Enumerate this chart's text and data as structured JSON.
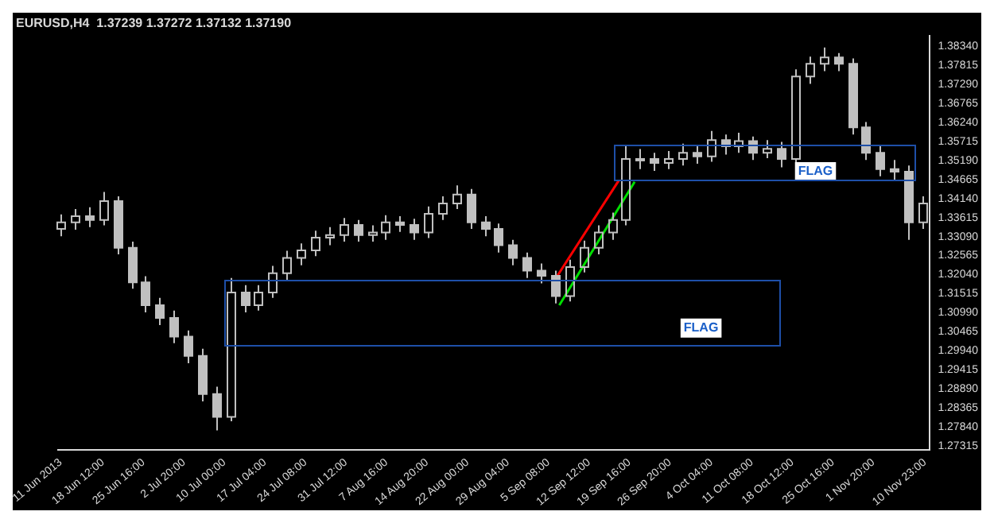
{
  "chart_data": {
    "type": "candlestick",
    "title": "EURUSD,H4  1.37239 1.37272 1.37132 1.37190",
    "color": "#c0c0c0",
    "x": [
      "2013-06-11T00:00",
      "2013-06-13T12:00",
      "2013-06-16T00:00",
      "2013-06-18T12:00",
      "2013-06-21T00:00",
      "2013-06-23T12:00",
      "2013-06-26T00:00",
      "2013-06-28T12:00",
      "2013-07-01T00:00",
      "2013-07-03T12:00",
      "2013-07-06T00:00",
      "2013-07-08T12:00",
      "2013-07-11T00:00",
      "2013-07-13T12:00",
      "2013-07-16T00:00",
      "2013-07-18T12:00",
      "2013-07-21T00:00",
      "2013-07-23T12:00",
      "2013-07-26T00:00",
      "2013-07-28T12:00",
      "2013-07-31T00:00",
      "2013-08-02T12:00",
      "2013-08-05T00:00",
      "2013-08-07T12:00",
      "2013-08-10T00:00",
      "2013-08-12T12:00",
      "2013-08-15T00:00",
      "2013-08-17T12:00",
      "2013-08-20T00:00",
      "2013-08-22T12:00",
      "2013-08-25T00:00",
      "2013-08-27T12:00",
      "2013-08-30T00:00",
      "2013-09-01T12:00",
      "2013-09-04T00:00",
      "2013-09-06T12:00",
      "2013-09-09T00:00",
      "2013-09-11T12:00",
      "2013-09-14T00:00",
      "2013-09-16T12:00",
      "2013-09-19T00:00",
      "2013-09-21T12:00",
      "2013-09-24T00:00",
      "2013-09-26T12:00",
      "2013-09-29T00:00",
      "2013-10-01T12:00",
      "2013-10-04T00:00",
      "2013-10-06T12:00",
      "2013-10-09T00:00",
      "2013-10-11T12:00",
      "2013-10-14T00:00",
      "2013-10-16T12:00",
      "2013-10-19T00:00",
      "2013-10-21T12:00",
      "2013-10-24T00:00",
      "2013-10-26T12:00",
      "2013-10-29T00:00",
      "2013-10-31T12:00",
      "2013-11-03T00:00",
      "2013-11-05T12:00",
      "2013-11-08T00:00",
      "2013-11-10T12:00"
    ],
    "ohlc": [
      [
        1.333,
        1.337,
        1.331,
        1.3348
      ],
      [
        1.3348,
        1.3385,
        1.3328,
        1.3365
      ],
      [
        1.3365,
        1.339,
        1.3335,
        1.3355
      ],
      [
        1.3355,
        1.3432,
        1.334,
        1.3407
      ],
      [
        1.3407,
        1.342,
        1.326,
        1.3278
      ],
      [
        1.3278,
        1.3295,
        1.3165,
        1.3183
      ],
      [
        1.3183,
        1.32,
        1.31,
        1.312
      ],
      [
        1.312,
        1.314,
        1.3065,
        1.3085
      ],
      [
        1.3085,
        1.3105,
        1.3015,
        1.3033
      ],
      [
        1.3033,
        1.305,
        1.296,
        1.298
      ],
      [
        1.298,
        1.3,
        1.2855,
        1.2875
      ],
      [
        1.2875,
        1.2895,
        1.2775,
        1.2812
      ],
      [
        1.2812,
        1.3195,
        1.28,
        1.3155
      ],
      [
        1.3155,
        1.3175,
        1.31,
        1.312
      ],
      [
        1.312,
        1.3175,
        1.3105,
        1.3155
      ],
      [
        1.3155,
        1.3228,
        1.314,
        1.3208
      ],
      [
        1.3208,
        1.327,
        1.319,
        1.325
      ],
      [
        1.325,
        1.329,
        1.323,
        1.3271
      ],
      [
        1.3271,
        1.3325,
        1.3255,
        1.3306
      ],
      [
        1.3306,
        1.3335,
        1.3285,
        1.3313
      ],
      [
        1.3313,
        1.336,
        1.3295,
        1.3341
      ],
      [
        1.3341,
        1.3355,
        1.3295,
        1.3313
      ],
      [
        1.3313,
        1.334,
        1.3295,
        1.332
      ],
      [
        1.332,
        1.3368,
        1.33,
        1.3348
      ],
      [
        1.3348,
        1.3365,
        1.3322,
        1.3341
      ],
      [
        1.3341,
        1.3358,
        1.33,
        1.332
      ],
      [
        1.332,
        1.3392,
        1.3305,
        1.3372
      ],
      [
        1.3372,
        1.342,
        1.3355,
        1.34
      ],
      [
        1.34,
        1.345,
        1.3385,
        1.3425
      ],
      [
        1.3425,
        1.344,
        1.333,
        1.3348
      ],
      [
        1.3348,
        1.3365,
        1.331,
        1.333
      ],
      [
        1.333,
        1.3345,
        1.3265,
        1.3285
      ],
      [
        1.3285,
        1.33,
        1.323,
        1.325
      ],
      [
        1.325,
        1.3265,
        1.3195,
        1.3215
      ],
      [
        1.3215,
        1.3235,
        1.318,
        1.3201
      ],
      [
        1.3201,
        1.3215,
        1.3125,
        1.3145
      ],
      [
        1.3145,
        1.3245,
        1.313,
        1.3225
      ],
      [
        1.3225,
        1.3298,
        1.321,
        1.3278
      ],
      [
        1.3278,
        1.334,
        1.326,
        1.332
      ],
      [
        1.332,
        1.3375,
        1.33,
        1.3355
      ],
      [
        1.3355,
        1.356,
        1.334,
        1.3523
      ],
      [
        1.3523,
        1.355,
        1.3495,
        1.3523
      ],
      [
        1.3523,
        1.354,
        1.349,
        1.3512
      ],
      [
        1.3512,
        1.3545,
        1.3495,
        1.3523
      ],
      [
        1.3523,
        1.3565,
        1.3505,
        1.354
      ],
      [
        1.354,
        1.356,
        1.351,
        1.353
      ],
      [
        1.353,
        1.36,
        1.3515,
        1.3575
      ],
      [
        1.3575,
        1.359,
        1.3535,
        1.3558
      ],
      [
        1.3558,
        1.3595,
        1.354,
        1.3572
      ],
      [
        1.3572,
        1.3585,
        1.352,
        1.354
      ],
      [
        1.354,
        1.3575,
        1.3525,
        1.3551
      ],
      [
        1.3551,
        1.357,
        1.35,
        1.3523
      ],
      [
        1.3523,
        1.377,
        1.351,
        1.375
      ],
      [
        1.375,
        1.3805,
        1.373,
        1.3785
      ],
      [
        1.3785,
        1.383,
        1.3765,
        1.3803
      ],
      [
        1.3803,
        1.3815,
        1.3765,
        1.3785
      ],
      [
        1.3785,
        1.38,
        1.359,
        1.361
      ],
      [
        1.361,
        1.3625,
        1.352,
        1.354
      ],
      [
        1.354,
        1.356,
        1.3475,
        1.3495
      ],
      [
        1.3495,
        1.352,
        1.3465,
        1.3488
      ],
      [
        1.3488,
        1.3505,
        1.33,
        1.3348
      ],
      [
        1.3348,
        1.342,
        1.333,
        1.34
      ]
    ],
    "series": [
      {
        "type": "line",
        "color": "#ff0000",
        "x": [
          "2013-09-06T18:00",
          "2013-09-17T18:00"
        ],
        "values": [
          1.3197,
          1.3463
        ]
      },
      {
        "type": "line",
        "color": "#00e000",
        "x": [
          "2013-09-07T06:00",
          "2013-09-20T14:00"
        ],
        "values": [
          1.312,
          1.346
        ]
      }
    ],
    "annotations": [
      {
        "text": "FLAG",
        "x": "2013-10-02T08:00",
        "y": 1.3057
      },
      {
        "text": "FLAG",
        "x": "2013-10-22T14:00",
        "y": 1.3488
      }
    ],
    "xlim": [
      "2013-06-10T12:00",
      "2013-11-11T20:00"
    ],
    "xticks": [
      {
        "value": "2013-06-11T00:00",
        "label": "11 Jun 2013"
      },
      {
        "value": "2013-06-18T12:00",
        "label": "18 Jun 12:00"
      },
      {
        "value": "2013-06-25T16:00",
        "label": "25 Jun 16:00"
      },
      {
        "value": "2013-07-02T20:00",
        "label": "2 Jul 20:00"
      },
      {
        "value": "2013-07-10T00:00",
        "label": "10 Jul 00:00"
      },
      {
        "value": "2013-07-17T04:00",
        "label": "17 Jul 04:00"
      },
      {
        "value": "2013-07-24T08:00",
        "label": "24 Jul 08:00"
      },
      {
        "value": "2013-07-31T12:00",
        "label": "31 Jul 12:00"
      },
      {
        "value": "2013-08-07T16:00",
        "label": "7 Aug 16:00"
      },
      {
        "value": "2013-08-14T20:00",
        "label": "14 Aug 20:00"
      },
      {
        "value": "2013-08-22T00:00",
        "label": "22 Aug 00:00"
      },
      {
        "value": "2013-08-29T04:00",
        "label": "29 Aug 04:00"
      },
      {
        "value": "2013-09-05T08:00",
        "label": "5 Sep 08:00"
      },
      {
        "value": "2013-09-12T12:00",
        "label": "12 Sep 12:00"
      },
      {
        "value": "2013-09-19T16:00",
        "label": "19 Sep 16:00"
      },
      {
        "value": "2013-09-26T20:00",
        "label": "26 Sep 20:00"
      },
      {
        "value": "2013-10-04T04:00",
        "label": "4 Oct 04:00"
      },
      {
        "value": "2013-10-11T08:00",
        "label": "11 Oct 08:00"
      },
      {
        "value": "2013-10-18T12:00",
        "label": "18 Oct 12:00"
      },
      {
        "value": "2013-10-25T16:00",
        "label": "25 Oct 16:00"
      },
      {
        "value": "2013-11-01T20:00",
        "label": "1 Nov 20:00"
      },
      {
        "value": "2013-11-10T23:00",
        "label": "10 Nov 23:00"
      }
    ],
    "ylim": [
      1.2722,
      1.3862
    ],
    "yticks": [
      1.27315,
      {
        "value": 1.2784,
        "label": "1.27840"
      },
      1.28365,
      {
        "value": 1.2889,
        "label": "1.28890"
      },
      1.29415,
      {
        "value": 1.2994,
        "label": "1.29940"
      },
      1.30465,
      {
        "value": 1.3099,
        "label": "1.30990"
      },
      1.31515,
      {
        "value": 1.3204,
        "label": "1.32040"
      },
      1.32565,
      {
        "value": 1.3309,
        "label": "1.33090"
      },
      1.33615,
      {
        "value": 1.3414,
        "label": "1.34140"
      },
      1.34665,
      {
        "value": 1.3519,
        "label": "1.35190"
      },
      1.35715,
      {
        "value": 1.3624,
        "label": "1.36240"
      },
      1.36765,
      {
        "value": 1.3729,
        "label": "1.37290"
      },
      1.37815,
      {
        "value": 1.3834,
        "label": "1.38340"
      }
    ]
  }
}
